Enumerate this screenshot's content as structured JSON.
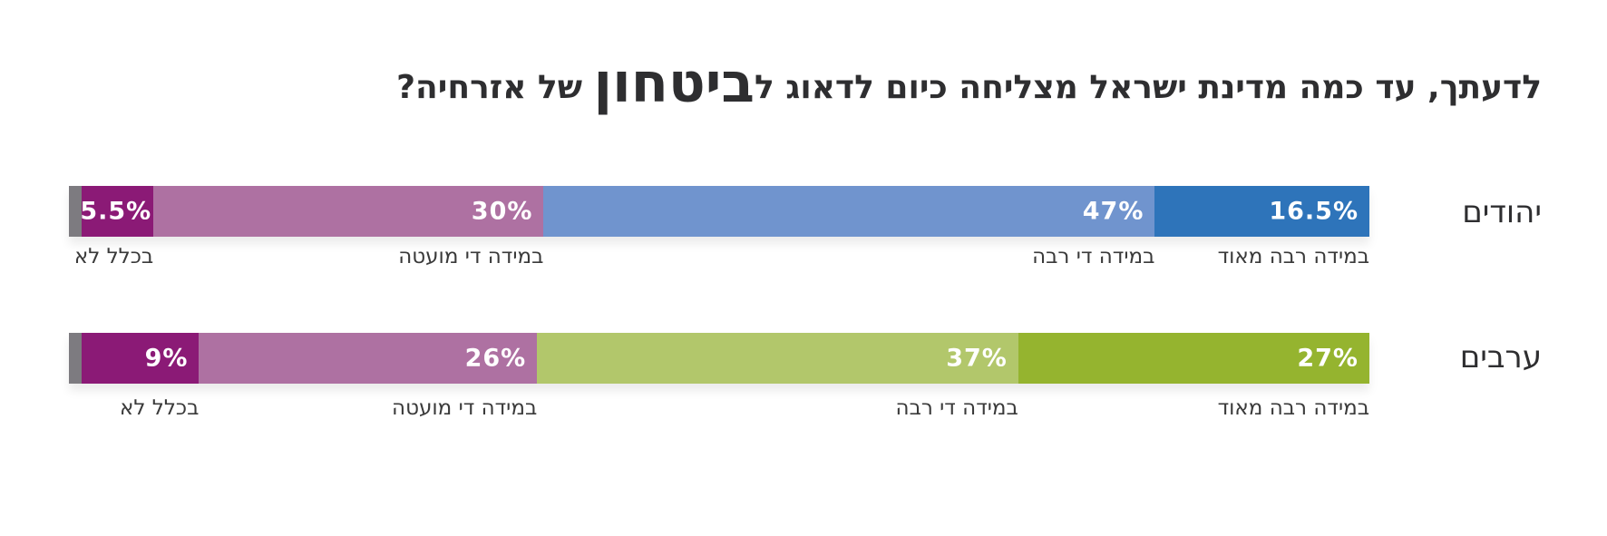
{
  "title": {
    "pre": "לדעתך, עד כמה מדינת ישראל מצליחה כיום לדאוג ל",
    "emphasis": "ביטחון",
    "post": " של אזרחיה?"
  },
  "chart_data": {
    "type": "bar",
    "orientation": "horizontal-stacked-100",
    "direction": "rtl",
    "categories": [
      "במידה רבה מאוד",
      "במידה די רבה",
      "במידה די מועטה",
      "בכלל לא"
    ],
    "groups": [
      {
        "name": "יהודים",
        "values": [
          16.5,
          47,
          30,
          5.5
        ],
        "labels": [
          "16.5%",
          "47%",
          "30%",
          "5.5%"
        ],
        "colors": [
          "#2e74ba",
          "#7094ce",
          "#ae71a2",
          "#8b1a76"
        ],
        "remainder_color": "#7d7b80"
      },
      {
        "name": "ערבים",
        "values": [
          27,
          37,
          26,
          9
        ],
        "labels": [
          "27%",
          "37%",
          "26%",
          "9%"
        ],
        "colors": [
          "#95b42f",
          "#b2c76b",
          "#ae71a2",
          "#8b1a76"
        ],
        "remainder_color": "#7d7b80"
      }
    ]
  }
}
